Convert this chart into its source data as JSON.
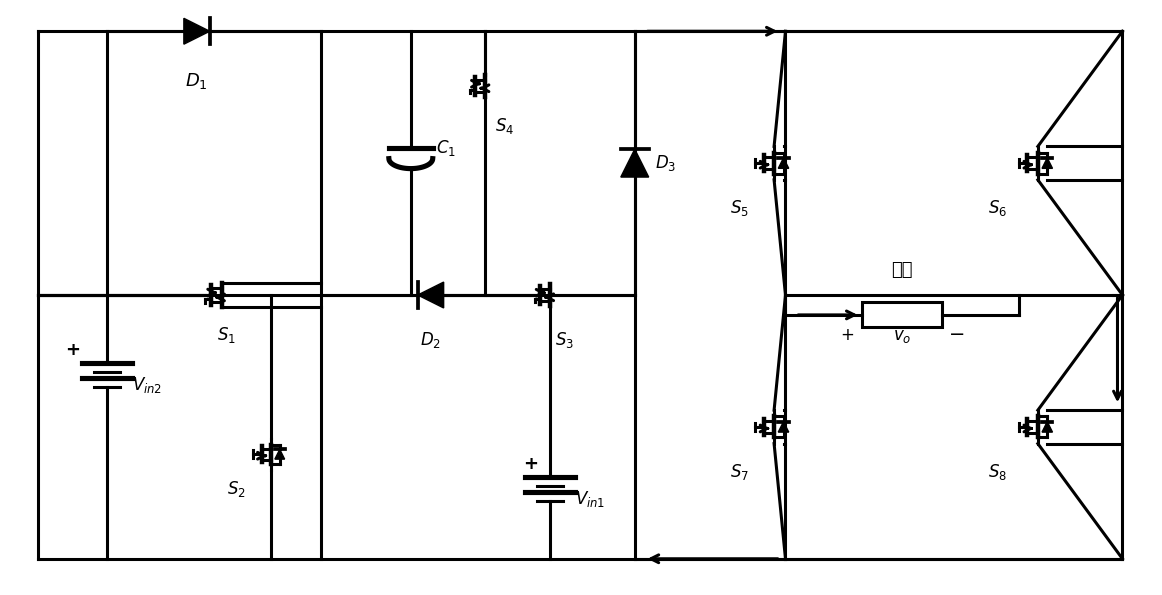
{
  "fig_width": 11.62,
  "fig_height": 5.95,
  "dpi": 100,
  "bg": "#ffffff",
  "lc": "black",
  "lw": 2.2,
  "labels": {
    "D1": "$D_1$",
    "D2": "$D_2$",
    "D3": "$D_3$",
    "C1": "$C_1$",
    "S1": "$S_1$",
    "S2": "$S_2$",
    "S3": "$S_3$",
    "S4": "$S_4$",
    "S5": "$S_5$",
    "S6": "$S_6$",
    "S7": "$S_7$",
    "S8": "$S_8$",
    "Vin1": "$V_{in1}$",
    "Vin2": "$V_{in2}$",
    "vo": "$v_o$",
    "load": "负载"
  }
}
